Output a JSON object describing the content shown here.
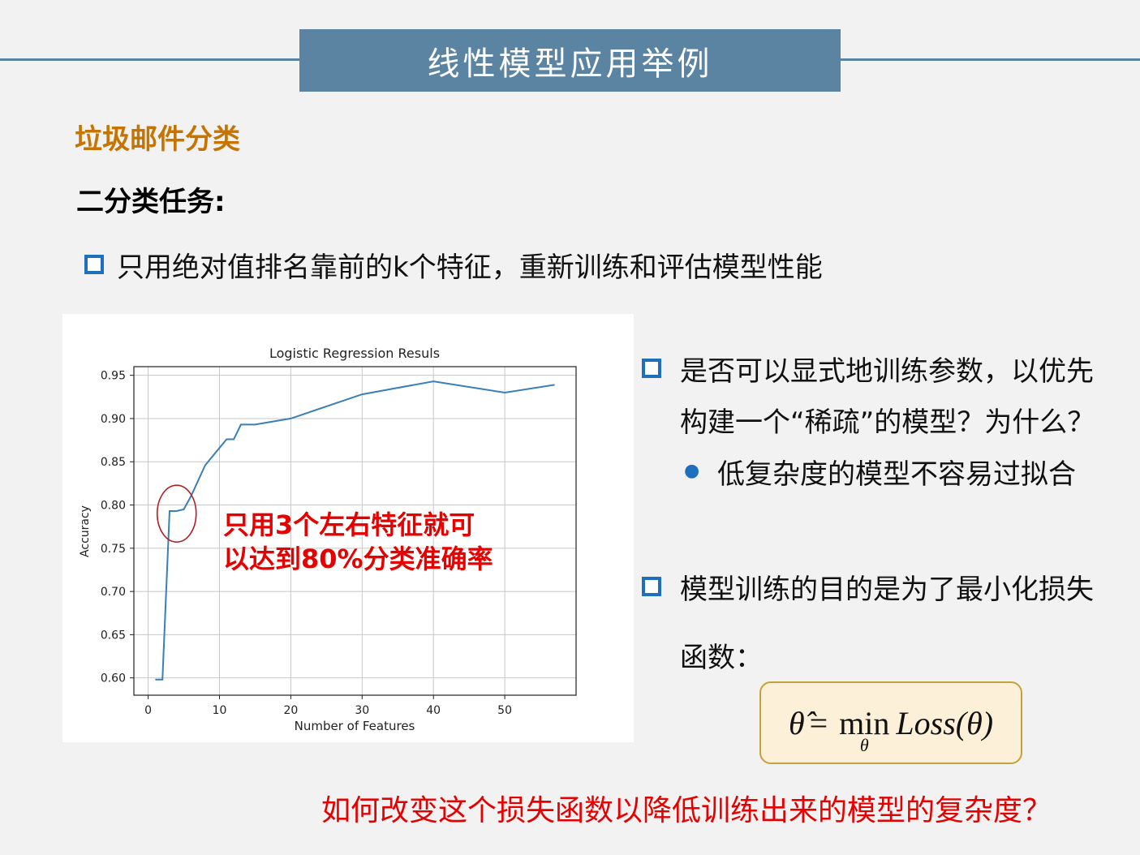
{
  "header": {
    "title": "线性模型应用举例"
  },
  "section": {
    "subtitle": "垃圾邮件分类",
    "task": "二分类任务:"
  },
  "bullets": {
    "b1": "只用绝对值排名靠前的k个特征，重新训练和评估模型性能",
    "b2_line1": "是否可以显式地训练参数，以优先",
    "b2_line2": "构建一个“稀疏”的模型？为什么？",
    "b2_sub": "低复杂度的模型不容易过拟合",
    "b3_line1": "模型训练的目的是为了最小化损失",
    "b3_line2": "函数："
  },
  "formula": {
    "lhs": "θ̂",
    "eq": "=",
    "op": "min",
    "sub": "θ",
    "rhs": "Loss(θ)"
  },
  "question": "如何改变这个损失函数以降低训练出来的模型的复杂度？",
  "colors": {
    "accent": "#5b84a3",
    "bullet": "#1f6fbf",
    "orange": "#c67300",
    "red": "#e60000",
    "line": "#3a7fb5"
  },
  "chart_data": {
    "type": "line",
    "title": "Logistic Regression Resuls",
    "xlabel": "Number of Features",
    "ylabel": "Accuracy",
    "xlim": [
      -2,
      60
    ],
    "ylim": [
      0.58,
      0.96
    ],
    "xticks": [
      0,
      10,
      20,
      30,
      40,
      50
    ],
    "yticks": [
      0.6,
      0.65,
      0.7,
      0.75,
      0.8,
      0.85,
      0.9,
      0.95
    ],
    "ytick_labels": [
      "0.60",
      "0.65",
      "0.70",
      "0.75",
      "0.80",
      "0.85",
      "0.90",
      "0.95"
    ],
    "grid": true,
    "series": [
      {
        "x": [
          1,
          2,
          3,
          4,
          5,
          6,
          7,
          8,
          9,
          10,
          11,
          12,
          13,
          15,
          20,
          30,
          40,
          50,
          57
        ],
        "y": [
          0.598,
          0.598,
          0.793,
          0.793,
          0.795,
          0.81,
          0.828,
          0.846,
          0.856,
          0.866,
          0.876,
          0.876,
          0.893,
          0.893,
          0.9,
          0.928,
          0.943,
          0.93,
          0.939
        ]
      }
    ],
    "annotation": {
      "line1": "只用3个左右特征就可",
      "line2": "以达到80%分类准确率",
      "circle_x": 4,
      "circle_y": 0.79
    }
  }
}
